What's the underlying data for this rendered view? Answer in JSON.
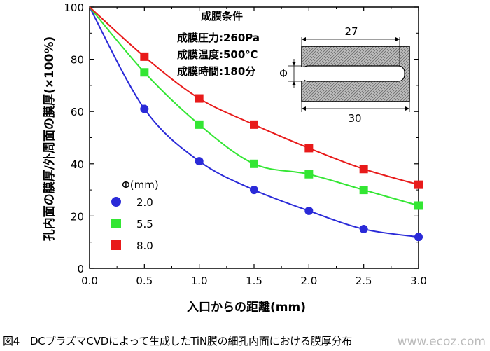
{
  "chart_data": {
    "type": "scatter",
    "xlabel": "入口からの距離(mm)",
    "ylabel": "孔内面の膜厚/外周面の膜厚(×100%)",
    "xlim": [
      0,
      3.0
    ],
    "ylim": [
      0,
      100
    ],
    "x_ticks": [
      "0.0",
      "0.5",
      "1.0",
      "1.5",
      "2.0",
      "2.5",
      "3.0"
    ],
    "y_ticks": [
      "0",
      "20",
      "40",
      "60",
      "80",
      "100"
    ],
    "legend_title": "Φ(mm)",
    "series": [
      {
        "name": "2.0",
        "marker": "circle",
        "color": "#2a2ad8",
        "x": [
          0,
          0.5,
          1.0,
          1.5,
          2.0,
          2.5,
          3.0
        ],
        "values": [
          100,
          61,
          41,
          30,
          22,
          15,
          12
        ]
      },
      {
        "name": "5.5",
        "marker": "square",
        "color": "#33e633",
        "x": [
          0,
          0.5,
          1.0,
          1.5,
          2.0,
          2.5,
          3.0
        ],
        "values": [
          100,
          75,
          55,
          40,
          36,
          30,
          24
        ]
      },
      {
        "name": "8.0",
        "marker": "square",
        "color": "#e81a1a",
        "x": [
          0,
          0.5,
          1.0,
          1.5,
          2.0,
          2.5,
          3.0
        ],
        "values": [
          100,
          81,
          65,
          55,
          46,
          38,
          32
        ]
      }
    ],
    "conditions": {
      "title": "成膜条件",
      "lines": [
        "成膜圧力:260Pa",
        "成膜温度:500℃",
        "成膜時間:180分"
      ]
    },
    "inset": {
      "top_dim": "27",
      "bottom_dim": "30",
      "phi_label": "Φ"
    }
  },
  "caption": "図4　DCプラズマCVDによって生成したTiN膜の細孔内面における膜厚分布",
  "watermark": "www.ecoz.com"
}
